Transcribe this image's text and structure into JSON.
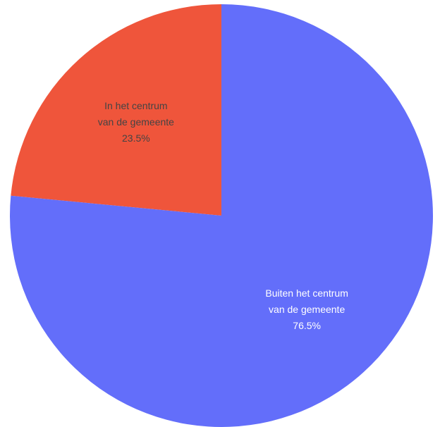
{
  "chart_data": {
    "type": "pie",
    "title": "",
    "legend": "none",
    "slices": [
      {
        "label_lines": [
          "In het centrum",
          "van de gemeente"
        ],
        "value": 23.5,
        "percent_label": "23.5%",
        "color": "#ef553b",
        "text_color": "#444444"
      },
      {
        "label_lines": [
          "Buiten het centrum",
          "van de gemeente"
        ],
        "value": 76.5,
        "percent_label": "76.5%",
        "color": "#636efa",
        "text_color": "#ffffff"
      }
    ]
  }
}
